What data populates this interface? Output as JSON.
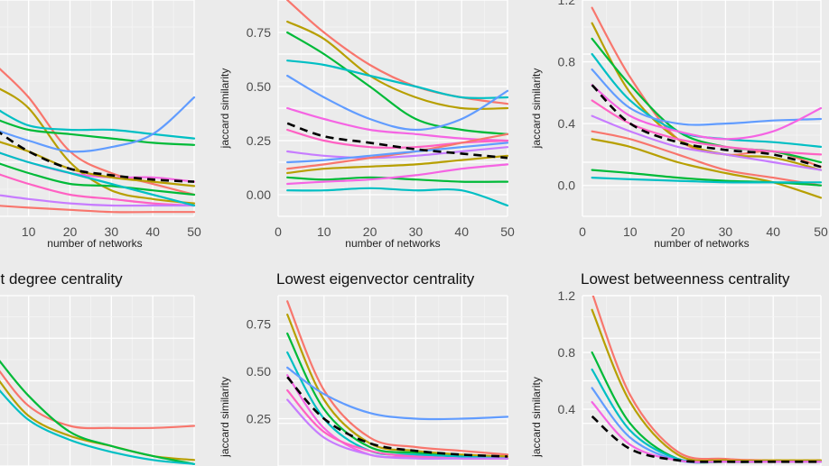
{
  "chart_data": [
    {
      "type": "line",
      "title": "",
      "xlabel": "number of networks",
      "ylabel": "",
      "xlim": [
        2,
        50
      ],
      "x_ticks": [
        10,
        20,
        30,
        40,
        50
      ],
      "y_ticks": [],
      "colors": [
        "#f8766d",
        "#b79f00",
        "#00ba38",
        "#00bfc4",
        "#619cff",
        "#f564e3",
        "#ff61c3",
        "#c77cff"
      ],
      "x": [
        2,
        10,
        20,
        30,
        40,
        50
      ],
      "series": [
        {
          "values": [
            0.7,
            0.55,
            0.3,
            0.2,
            0.15,
            0.1
          ]
        },
        {
          "values": [
            0.6,
            0.5,
            0.25,
            0.12,
            0.08,
            0.06
          ]
        },
        {
          "values": [
            0.45,
            0.4,
            0.38,
            0.36,
            0.34,
            0.33
          ]
        },
        {
          "values": [
            0.5,
            0.42,
            0.4,
            0.4,
            0.38,
            0.36
          ]
        },
        {
          "values": [
            0.4,
            0.35,
            0.3,
            0.32,
            0.38,
            0.55
          ]
        },
        {
          "values": [
            0.3,
            0.25,
            0.2,
            0.18,
            0.18,
            0.16
          ]
        },
        {
          "values": [
            0.2,
            0.15,
            0.1,
            0.08,
            0.06,
            0.05
          ]
        },
        {
          "values": [
            0.1,
            0.08,
            0.06,
            0.05,
            0.05,
            0.05
          ]
        },
        {
          "values": [
            0.05,
            0.04,
            0.03,
            0.02,
            0.02,
            0.02
          ]
        },
        {
          "values": [
            0.35,
            0.3,
            0.22,
            0.18,
            0.16,
            0.14
          ]
        },
        {
          "values": [
            0.25,
            0.2,
            0.15,
            0.14,
            0.12,
            0.1
          ]
        },
        {
          "values": [
            0.3,
            0.25,
            0.2,
            0.15,
            0.1,
            0.05
          ]
        }
      ],
      "mean": [
        0.4,
        0.3,
        0.22,
        0.19,
        0.17,
        0.16
      ]
    },
    {
      "type": "line",
      "title": "",
      "xlabel": "number of networks",
      "ylabel": "jaccard similarity",
      "xlim": [
        0,
        50
      ],
      "ylim": [
        -0.1,
        0.9
      ],
      "x_ticks": [
        0,
        10,
        20,
        30,
        40,
        50
      ],
      "y_ticks": [
        0.0,
        0.25,
        0.5,
        0.75
      ],
      "y_tick_labels": [
        "0.00",
        "0.25",
        "0.50",
        "0.75"
      ],
      "colors": [
        "#f8766d",
        "#b79f00",
        "#00ba38",
        "#00bfc4",
        "#619cff",
        "#f564e3",
        "#ff61c3",
        "#c77cff"
      ],
      "x": [
        2,
        10,
        20,
        30,
        40,
        50
      ],
      "series": [
        {
          "values": [
            0.9,
            0.75,
            0.6,
            0.5,
            0.45,
            0.42
          ]
        },
        {
          "values": [
            0.8,
            0.72,
            0.55,
            0.45,
            0.4,
            0.4
          ]
        },
        {
          "values": [
            0.75,
            0.65,
            0.5,
            0.35,
            0.3,
            0.28
          ]
        },
        {
          "values": [
            0.62,
            0.6,
            0.55,
            0.5,
            0.45,
            0.45
          ]
        },
        {
          "values": [
            0.55,
            0.45,
            0.35,
            0.3,
            0.35,
            0.48
          ]
        },
        {
          "values": [
            0.4,
            0.35,
            0.3,
            0.28,
            0.26,
            0.25
          ]
        },
        {
          "values": [
            0.3,
            0.25,
            0.22,
            0.22,
            0.24,
            0.25
          ]
        },
        {
          "values": [
            0.2,
            0.18,
            0.17,
            0.18,
            0.2,
            0.22
          ]
        },
        {
          "values": [
            0.12,
            0.14,
            0.17,
            0.2,
            0.24,
            0.28
          ]
        },
        {
          "values": [
            0.1,
            0.12,
            0.13,
            0.14,
            0.16,
            0.18
          ]
        },
        {
          "values": [
            0.08,
            0.07,
            0.08,
            0.07,
            0.06,
            0.06
          ]
        },
        {
          "values": [
            0.02,
            0.02,
            0.03,
            0.02,
            0.02,
            -0.05
          ]
        },
        {
          "values": [
            0.15,
            0.16,
            0.18,
            0.2,
            0.22,
            0.24
          ]
        },
        {
          "values": [
            0.05,
            0.06,
            0.07,
            0.09,
            0.12,
            0.14
          ]
        }
      ],
      "mean": [
        0.33,
        0.27,
        0.24,
        0.21,
        0.19,
        0.17
      ]
    },
    {
      "type": "line",
      "title": "",
      "xlabel": "number of networks",
      "ylabel": "jaccard similarity",
      "xlim": [
        0,
        50
      ],
      "ylim": [
        -0.2,
        1.2
      ],
      "x_ticks": [
        0,
        10,
        20,
        30,
        40,
        50
      ],
      "y_ticks": [
        0.0,
        0.4,
        0.8,
        1.2
      ],
      "y_tick_labels": [
        "0.0",
        "0.4",
        "0.8",
        "1.2"
      ],
      "colors": [
        "#f8766d",
        "#b79f00",
        "#00ba38",
        "#00bfc4",
        "#619cff",
        "#f564e3",
        "#ff61c3",
        "#c77cff"
      ],
      "x": [
        2,
        10,
        20,
        30,
        40,
        50
      ],
      "series": [
        {
          "values": [
            1.15,
            0.7,
            0.3,
            0.2,
            0.22,
            0.12
          ]
        },
        {
          "values": [
            1.05,
            0.6,
            0.3,
            0.2,
            0.18,
            0.1
          ]
        },
        {
          "values": [
            0.95,
            0.65,
            0.35,
            0.25,
            0.22,
            0.15
          ]
        },
        {
          "values": [
            0.85,
            0.55,
            0.35,
            0.3,
            0.28,
            0.25
          ]
        },
        {
          "values": [
            0.75,
            0.5,
            0.4,
            0.4,
            0.42,
            0.43
          ]
        },
        {
          "values": [
            0.65,
            0.45,
            0.35,
            0.3,
            0.35,
            0.5
          ]
        },
        {
          "values": [
            0.55,
            0.4,
            0.3,
            0.25,
            0.22,
            0.2
          ]
        },
        {
          "values": [
            0.45,
            0.35,
            0.25,
            0.2,
            0.15,
            0.1
          ]
        },
        {
          "values": [
            0.35,
            0.3,
            0.2,
            0.1,
            0.05,
            0.0
          ]
        },
        {
          "values": [
            0.3,
            0.25,
            0.15,
            0.08,
            0.02,
            -0.08
          ]
        },
        {
          "values": [
            0.1,
            0.08,
            0.05,
            0.03,
            0.02,
            0.0
          ]
        },
        {
          "values": [
            0.05,
            0.04,
            0.03,
            0.02,
            0.02,
            0.02
          ]
        }
      ],
      "mean": [
        0.65,
        0.4,
        0.28,
        0.23,
        0.2,
        0.12
      ]
    },
    {
      "type": "line",
      "title": "…st degree centrality",
      "xlabel": "",
      "ylabel": "",
      "xlim": [
        2,
        50
      ],
      "ylim": [
        0.05,
        0.9
      ],
      "x_ticks": [],
      "y_ticks": [],
      "colors": [
        "#f8766d",
        "#b79f00",
        "#00ba38",
        "#00bfc4",
        "#619cff",
        "#f564e3",
        "#ff61c3",
        "#c77cff"
      ],
      "x": [
        2,
        10,
        20,
        30,
        40,
        50
      ],
      "series": [
        {
          "values": [
            0.55,
            0.35,
            0.25,
            0.24,
            0.24,
            0.25
          ]
        },
        {
          "values": [
            0.5,
            0.3,
            0.2,
            0.15,
            0.1,
            0.08
          ]
        },
        {
          "values": [
            0.6,
            0.4,
            0.22,
            0.15,
            0.1,
            0.06
          ]
        },
        {
          "values": [
            0.45,
            0.28,
            0.18,
            0.12,
            0.08,
            0.06
          ]
        }
      ],
      "mean": []
    },
    {
      "type": "line",
      "title": "Lowest eigenvector centrality",
      "xlabel": "",
      "ylabel": "jaccard similarity",
      "xlim": [
        0,
        50
      ],
      "ylim": [
        0.0,
        0.9
      ],
      "x_ticks": [],
      "y_ticks": [
        0.25,
        0.5,
        0.75
      ],
      "y_tick_labels": [
        "0.25",
        "0.50",
        "0.75"
      ],
      "colors": [
        "#f8766d",
        "#b79f00",
        "#00ba38",
        "#00bfc4",
        "#619cff",
        "#f564e3",
        "#ff61c3",
        "#c77cff"
      ],
      "x": [
        2,
        10,
        20,
        30,
        40,
        50
      ],
      "series": [
        {
          "values": [
            0.87,
            0.4,
            0.15,
            0.1,
            0.08,
            0.06
          ]
        },
        {
          "values": [
            0.8,
            0.35,
            0.12,
            0.08,
            0.06,
            0.05
          ]
        },
        {
          "values": [
            0.7,
            0.3,
            0.1,
            0.07,
            0.05,
            0.04
          ]
        },
        {
          "values": [
            0.6,
            0.25,
            0.08,
            0.06,
            0.05,
            0.04
          ]
        },
        {
          "values": [
            0.52,
            0.38,
            0.28,
            0.25,
            0.25,
            0.26
          ]
        },
        {
          "values": [
            0.48,
            0.2,
            0.06,
            0.05,
            0.04,
            0.04
          ]
        },
        {
          "values": [
            0.4,
            0.18,
            0.08,
            0.05,
            0.04,
            0.04
          ]
        },
        {
          "values": [
            0.35,
            0.15,
            0.06,
            0.04,
            0.04,
            0.04
          ]
        }
      ],
      "mean": [
        0.47,
        0.25,
        0.12,
        0.08,
        0.06,
        0.05
      ]
    },
    {
      "type": "line",
      "title": "Lowest betweenness centrality",
      "xlabel": "",
      "ylabel": "jaccard similarity",
      "xlim": [
        0,
        50
      ],
      "ylim": [
        0.0,
        1.2
      ],
      "x_ticks": [],
      "y_ticks": [
        0.4,
        0.8,
        1.2
      ],
      "y_tick_labels": [
        "0.4",
        "0.8",
        "1.2"
      ],
      "colors": [
        "#f8766d",
        "#b79f00",
        "#00ba38",
        "#00bfc4",
        "#619cff",
        "#f564e3",
        "#ff61c3",
        "#c77cff"
      ],
      "x": [
        2,
        10,
        20,
        30,
        40,
        50
      ],
      "series": [
        {
          "values": [
            1.22,
            0.5,
            0.1,
            0.05,
            0.04,
            0.04
          ]
        },
        {
          "values": [
            1.1,
            0.45,
            0.08,
            0.04,
            0.04,
            0.04
          ]
        },
        {
          "values": [
            0.8,
            0.3,
            0.05,
            0.03,
            0.03,
            0.03
          ]
        },
        {
          "values": [
            0.68,
            0.25,
            0.05,
            0.03,
            0.03,
            0.03
          ]
        },
        {
          "values": [
            0.55,
            0.2,
            0.04,
            0.03,
            0.03,
            0.03
          ]
        },
        {
          "values": [
            0.45,
            0.15,
            0.04,
            0.03,
            0.03,
            0.03
          ]
        }
      ],
      "mean": [
        0.35,
        0.12,
        0.04,
        0.03,
        0.03,
        0.03
      ]
    }
  ]
}
